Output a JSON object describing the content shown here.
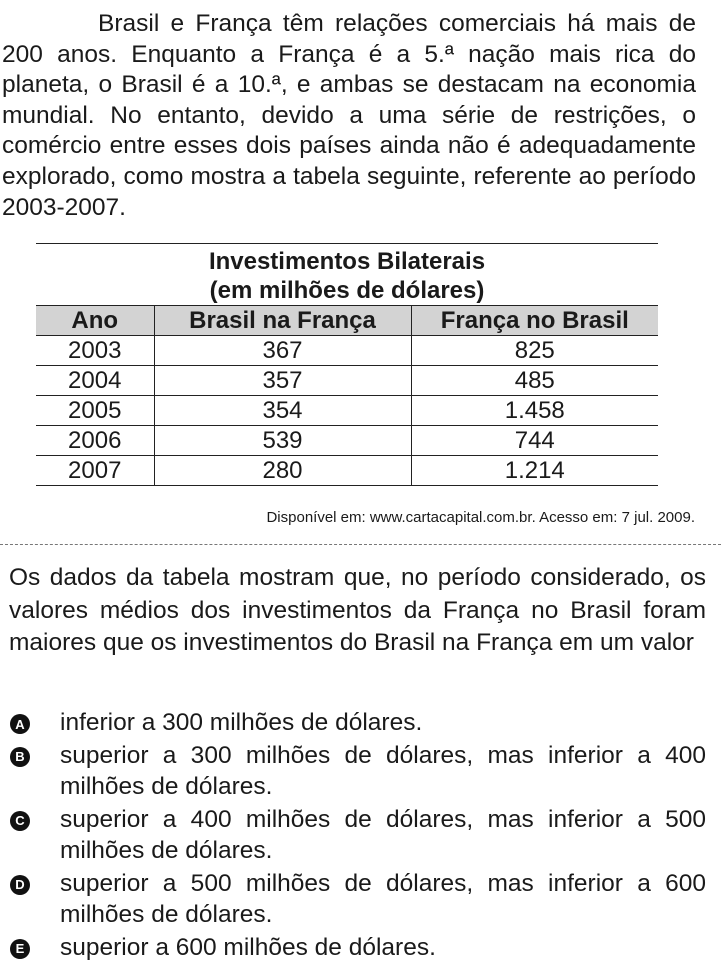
{
  "intro_text": "Brasil e França têm relações comerciais há mais de 200 anos. Enquanto a França é a 5.ª nação mais rica do planeta, o Brasil é a 10.ª, e ambas se destacam na economia mundial. No entanto, devido a uma série de restrições, o comércio entre esses dois países ainda não é adequadamente explorado, como mostra a tabela seguinte, referente ao período 2003-2007.",
  "table": {
    "title_line1": "Investimentos Bilaterais",
    "title_line2": "(em milhões de dólares)",
    "headers": [
      "Ano",
      "Brasil na França",
      "França no Brasil"
    ],
    "rows": [
      [
        "2003",
        "367",
        "825"
      ],
      [
        "2004",
        "357",
        "485"
      ],
      [
        "2005",
        "354",
        "1.458"
      ],
      [
        "2006",
        "539",
        "744"
      ],
      [
        "2007",
        "280",
        "1.214"
      ]
    ]
  },
  "source": "Disponível em: www.cartacapital.com.br. Acesso em: 7 jul. 2009.",
  "question": "Os dados da tabela mostram que, no período considerado, os valores médios dos investimentos da França no Brasil foram maiores que os investimentos do Brasil na França em um valor",
  "options": [
    {
      "letter": "A",
      "text": "inferior a 300 milhões de dólares."
    },
    {
      "letter": "B",
      "text": "superior a 300 milhões de dólares, mas inferior a 400 milhões de dólares."
    },
    {
      "letter": "C",
      "text": "superior a 400 milhões de dólares, mas inferior a 500 milhões de dólares."
    },
    {
      "letter": "D",
      "text": "superior a 500 milhões de dólares, mas inferior a 600 milhões de dólares."
    },
    {
      "letter": "E",
      "text": "superior a 600 milhões de dólares."
    }
  ]
}
